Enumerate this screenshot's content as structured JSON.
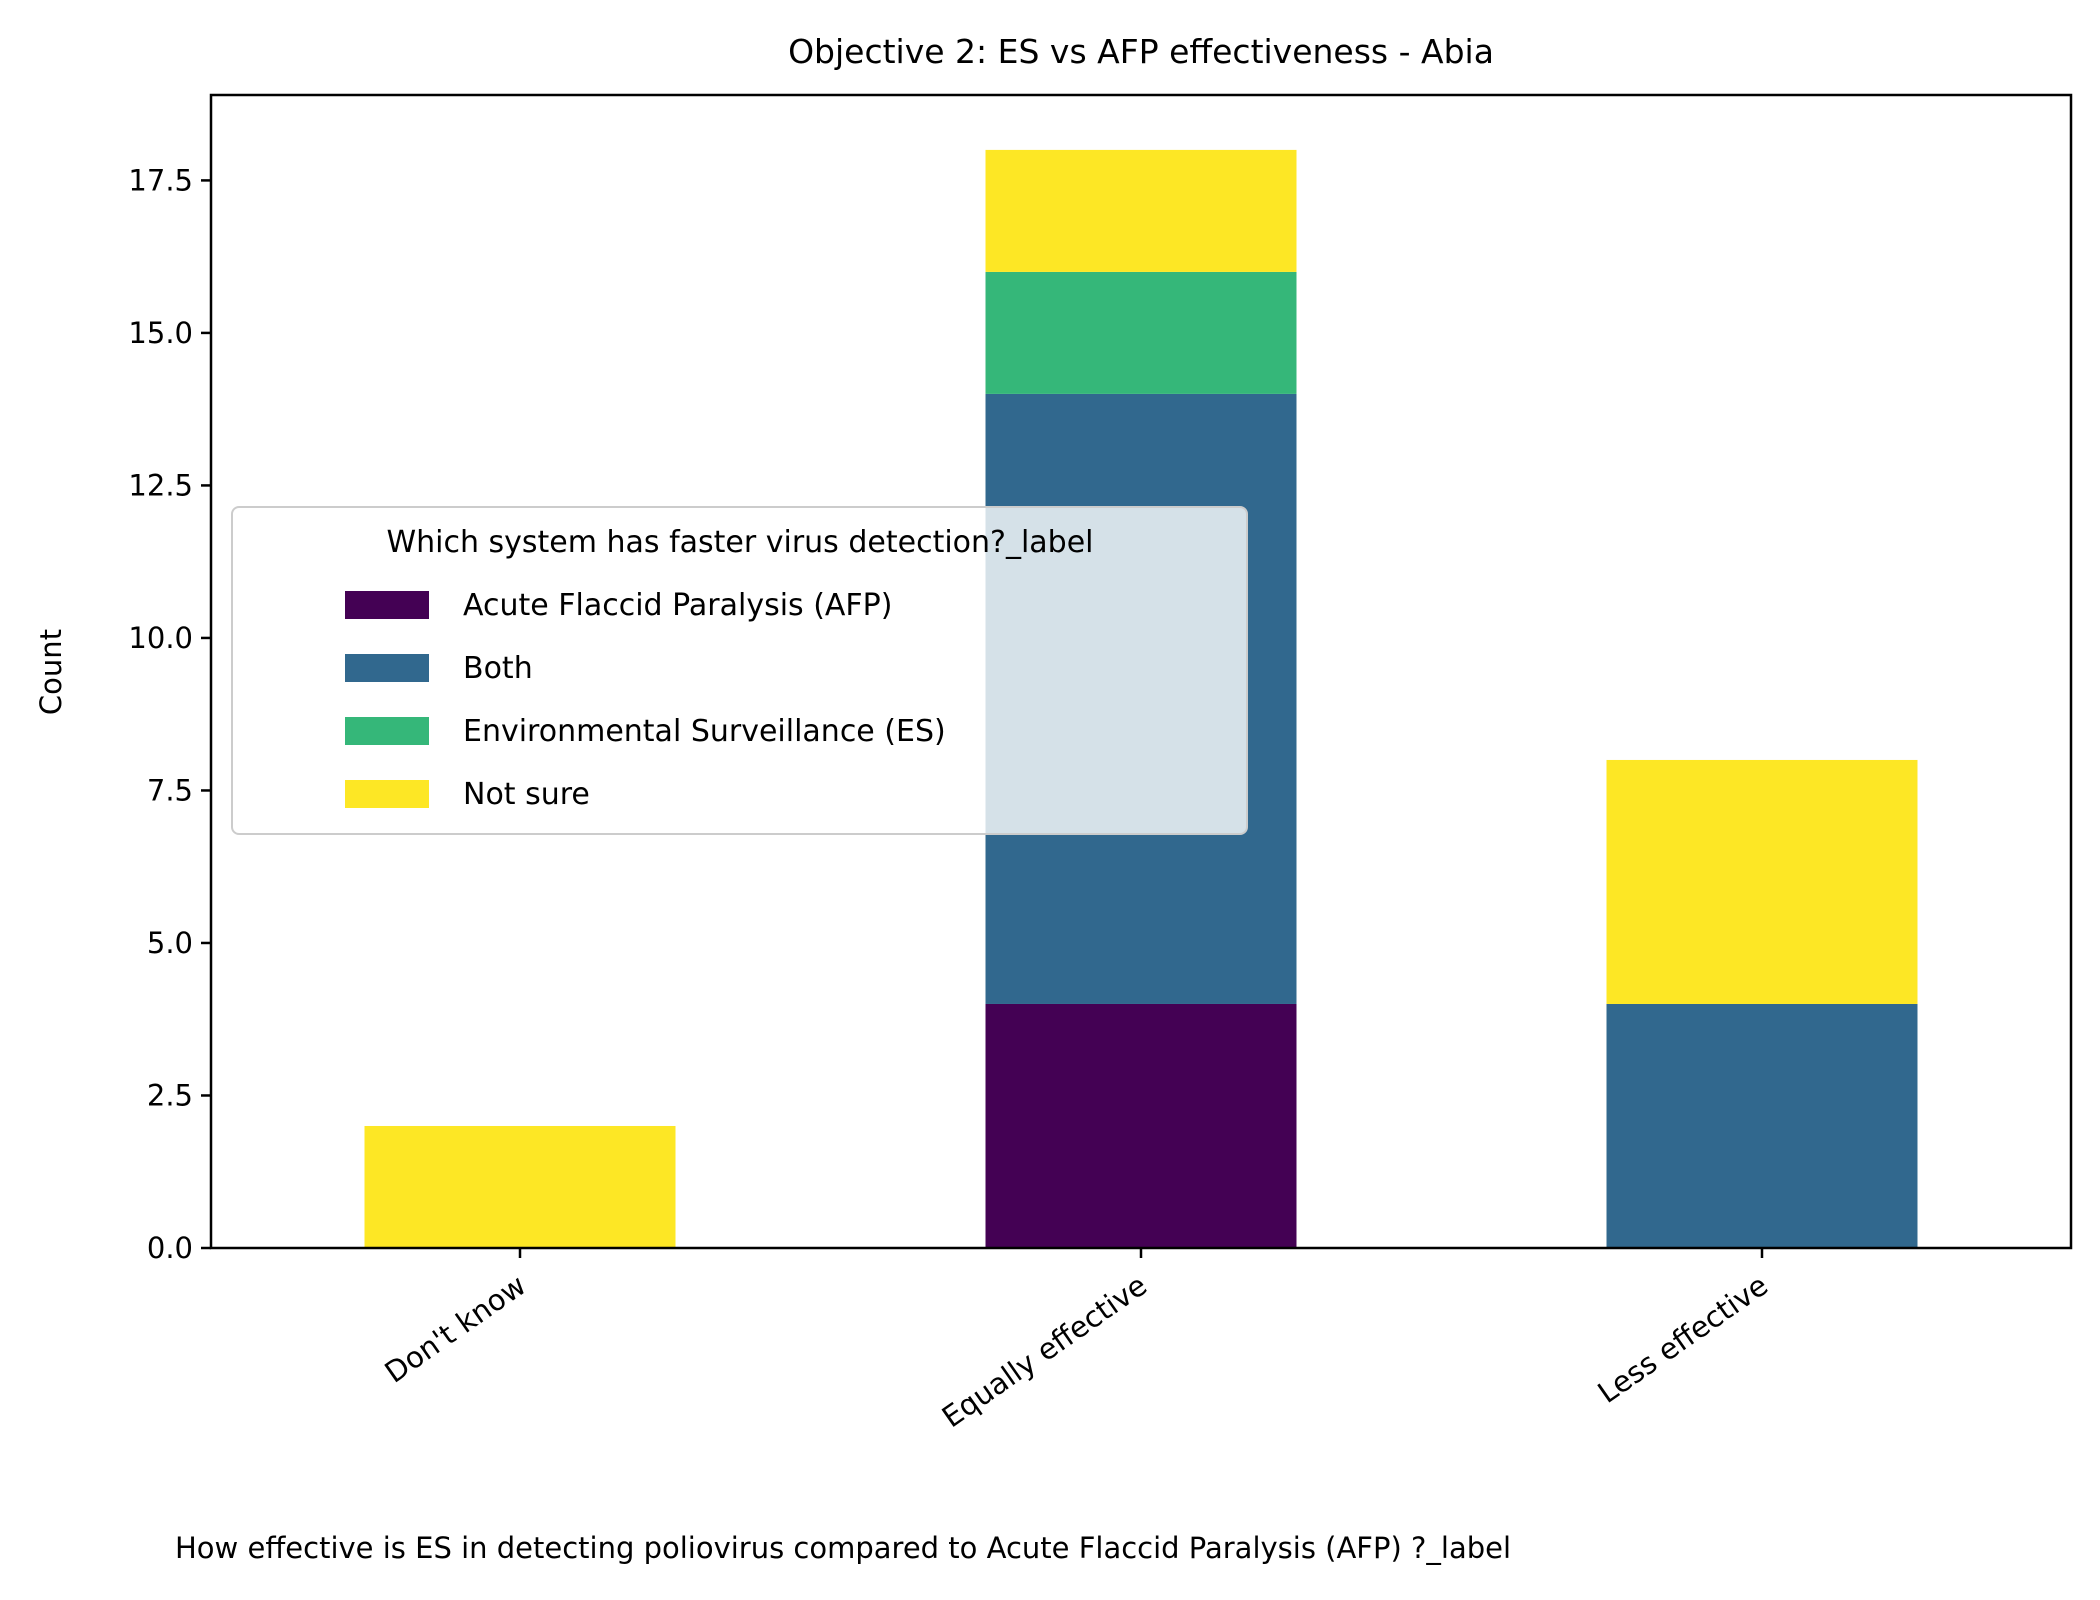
{
  "chart_data": {
    "type": "bar",
    "stacked": true,
    "title": "Objective 2: ES vs AFP effectiveness - Abia",
    "xlabel": "How effective is ES in detecting poliovirus compared to  Acute Flaccid Paralysis (AFP) ?_label",
    "ylabel": "Count",
    "categories": [
      "Don't know",
      "Equally effective",
      "Less effective"
    ],
    "ylim": [
      0,
      18.9
    ],
    "yticks": [
      0,
      2.5,
      5,
      7.5,
      10,
      12.5,
      15,
      17.5
    ],
    "ytick_labels": [
      "0.0",
      "2.5",
      "5.0",
      "7.5",
      "10.0",
      "12.5",
      "15.0",
      "17.5"
    ],
    "grid": false,
    "legend": {
      "title": "Which system has faster virus detection?_label",
      "placement": "center-left"
    },
    "series": [
      {
        "name": "Acute Flaccid Paralysis (AFP)",
        "color": "#440154",
        "values": [
          0,
          4,
          0
        ]
      },
      {
        "name": "Both",
        "color": "#31688e",
        "values": [
          0,
          10,
          4
        ]
      },
      {
        "name": "Environmental Surveillance (ES)",
        "color": "#35b779",
        "values": [
          0,
          2,
          0
        ]
      },
      {
        "name": "Not sure",
        "color": "#fde725",
        "values": [
          2,
          2,
          4
        ]
      }
    ]
  }
}
